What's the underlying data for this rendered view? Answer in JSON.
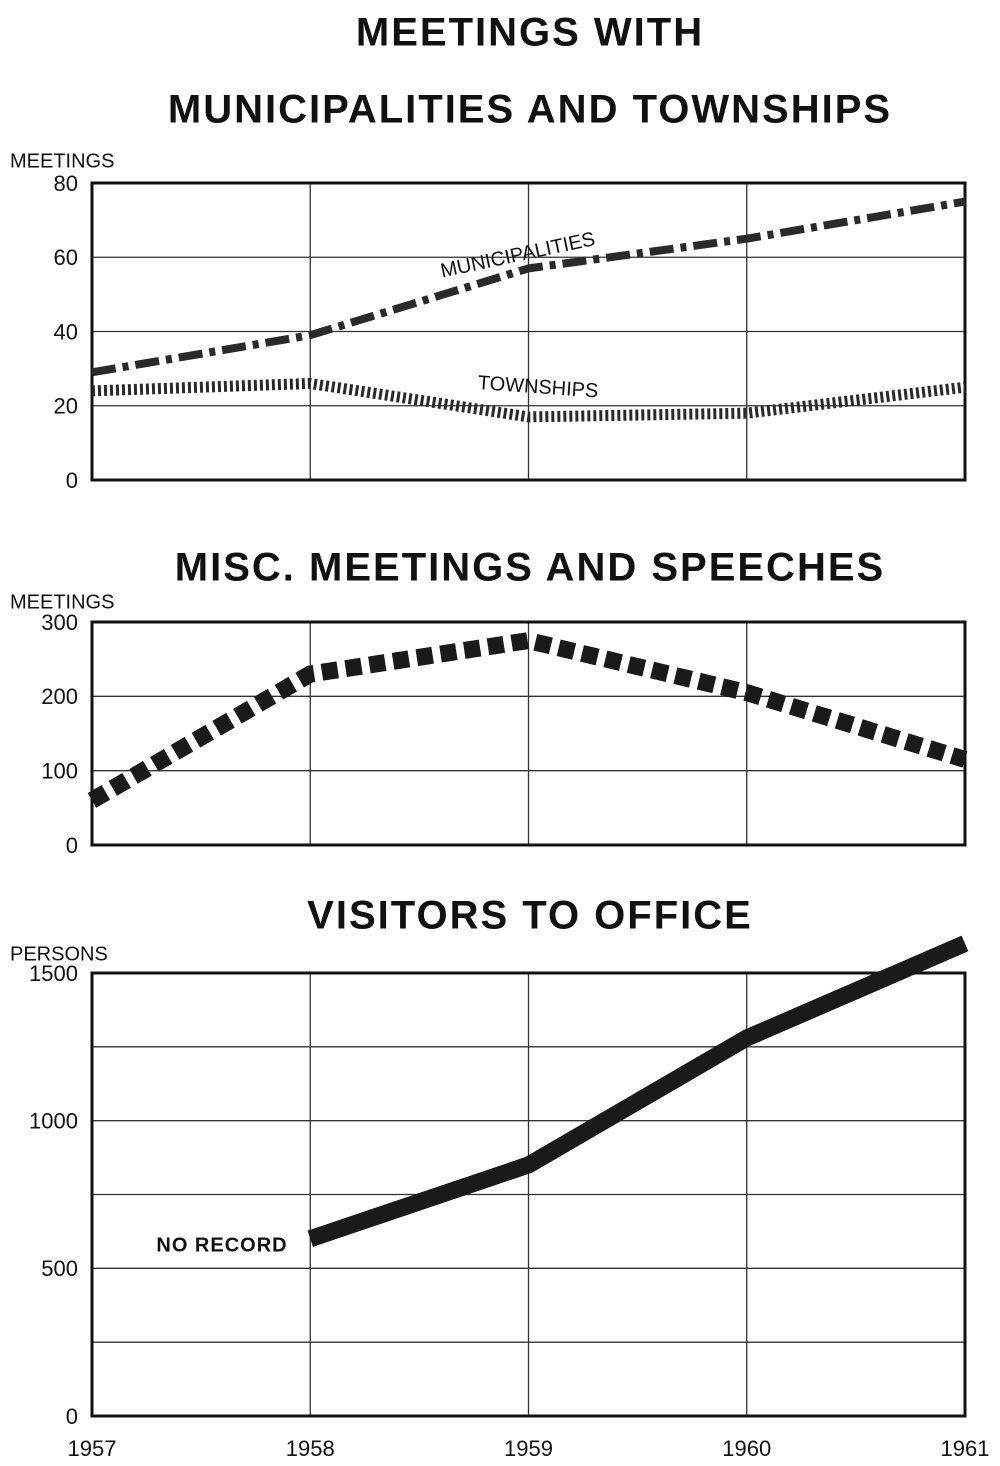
{
  "chart_data": [
    {
      "type": "line",
      "title": [
        "MEETINGS WITH",
        "MUNICIPALITIES AND TOWNSHIPS"
      ],
      "ylabel": "MEETINGS",
      "x": [
        1957,
        1958,
        1959,
        1960,
        1961
      ],
      "xlim": [
        1957,
        1961
      ],
      "ylim": [
        0,
        80
      ],
      "yticks": [
        0,
        20,
        40,
        60,
        80
      ],
      "grid": true,
      "series": [
        {
          "name": "MUNICIPALITIES",
          "color": "#2a2a2a",
          "linestyle": "dashdot",
          "values": [
            29,
            39,
            57,
            65,
            75
          ]
        },
        {
          "name": "TOWNSHIPS",
          "color": "#2a2a2a",
          "linestyle": "dotted",
          "values": [
            24,
            26,
            17,
            18,
            25
          ]
        }
      ]
    },
    {
      "type": "line",
      "title": [
        "MISC. MEETINGS AND SPEECHES"
      ],
      "ylabel": "MEETINGS",
      "x": [
        1957,
        1958,
        1959,
        1960,
        1961
      ],
      "xlim": [
        1957,
        1961
      ],
      "ylim": [
        0,
        300
      ],
      "yticks": [
        0,
        100,
        200,
        300
      ],
      "grid": true,
      "series": [
        {
          "color": "#1a1a1a",
          "linestyle": "dashed",
          "values": [
            60,
            230,
            275,
            205,
            115
          ]
        }
      ]
    },
    {
      "type": "line",
      "title": [
        "VISITORS TO OFFICE"
      ],
      "ylabel": "PERSONS",
      "x": [
        1957,
        1958,
        1959,
        1960,
        1961
      ],
      "xlim": [
        1957,
        1961
      ],
      "xticks": [
        1957,
        1958,
        1959,
        1960,
        1961
      ],
      "ylim": [
        0,
        1500
      ],
      "yticks": [
        0,
        500,
        1000,
        1500
      ],
      "yminor": [
        250,
        750,
        1250
      ],
      "grid": true,
      "annotations": [
        "NO RECORD"
      ],
      "series": [
        {
          "color": "#1a1a1a",
          "linestyle": "solid",
          "values": [
            null,
            600,
            850,
            1280,
            1600
          ]
        }
      ]
    }
  ]
}
